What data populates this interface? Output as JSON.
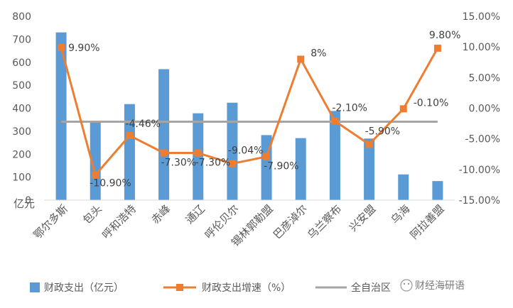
{
  "chart_data": {
    "type": "bar+line",
    "categories": [
      "鄂尔多斯",
      "包头",
      "呼和浩特",
      "赤峰",
      "通辽",
      "呼伦贝尔",
      "锡林郭勒盟",
      "巴彦淖尔",
      "乌兰察布",
      "兴安盟",
      "乌海",
      "阿拉善盟"
    ],
    "series": [
      {
        "name": "财政支出（亿元）",
        "type": "bar",
        "axis": "left",
        "color": "#5b9bd5",
        "values": [
          730,
          340,
          418,
          570,
          378,
          424,
          283,
          270,
          388,
          268,
          112,
          83
        ]
      },
      {
        "name": "财政支出增速（%）",
        "type": "line",
        "axis": "right",
        "color": "#ed7d31",
        "values": [
          9.9,
          -10.9,
          -4.46,
          -7.3,
          -7.3,
          -9.04,
          -7.9,
          8.0,
          -2.1,
          -5.9,
          -0.1,
          9.8
        ],
        "labels": [
          "9.90%",
          "-10.90%",
          "-4.46%",
          "-7.30%",
          "-7.30%",
          "-9.04%",
          "-7.90%",
          "8%",
          "-2.10%",
          "-5.90%",
          "-0.10%",
          "9.80%"
        ]
      },
      {
        "name": "全自治区",
        "type": "line",
        "axis": "right",
        "color": "#a5a5a5",
        "value": -2.2
      }
    ],
    "y_left": {
      "min": 0,
      "max": 800,
      "step": 100,
      "ticks": [
        "0",
        "100",
        "200",
        "300",
        "400",
        "500",
        "600",
        "700",
        "800"
      ],
      "unit_label": "亿元"
    },
    "y_right": {
      "min": -15,
      "max": 15,
      "step": 5,
      "ticks": [
        "-15.00%",
        "-10.00%",
        "-5.00%",
        "0.00%",
        "5.00%",
        "10.00%",
        "15.00%"
      ]
    },
    "grid": false,
    "legend_position": "bottom"
  },
  "watermark": "财经海研语"
}
